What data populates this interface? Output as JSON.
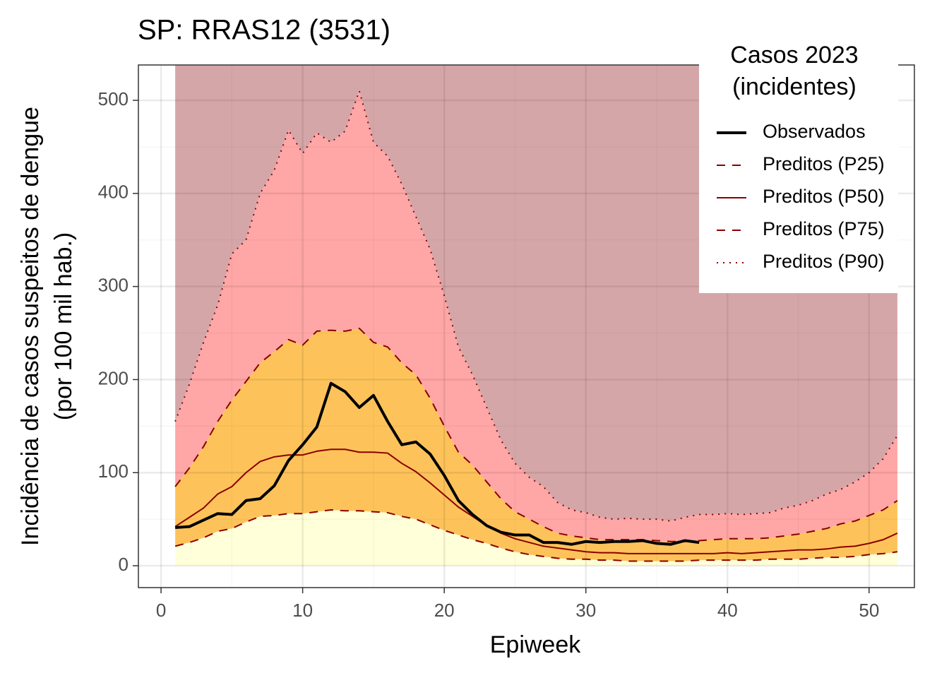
{
  "chart_data": {
    "type": "line",
    "title": "SP: RRAS12 (3531)",
    "xlabel": "Epiweek",
    "ylabel": [
      "Incidência de casos suspeitos de dengue",
      "(por 100 mil hab.)"
    ],
    "legend_title": [
      "Casos 2023",
      "(incidentes)"
    ],
    "legend_position": "top-right",
    "grid": true,
    "xlim": [
      -1.6,
      53.2
    ],
    "ylim": [
      -23.5,
      538
    ],
    "xticks": [
      0,
      10,
      20,
      30,
      40,
      50
    ],
    "yticks": [
      0,
      100,
      200,
      300,
      400,
      500
    ],
    "xminor": [
      5,
      15,
      25,
      35,
      45
    ],
    "yminor": [
      50,
      150,
      250,
      350,
      450
    ],
    "above_fill": "#d5a6a8",
    "x": [
      1,
      2,
      3,
      4,
      5,
      6,
      7,
      8,
      9,
      10,
      11,
      12,
      13,
      14,
      15,
      16,
      17,
      18,
      19,
      20,
      21,
      22,
      23,
      24,
      25,
      26,
      27,
      28,
      29,
      30,
      31,
      32,
      33,
      34,
      35,
      36,
      37,
      38,
      39,
      40,
      41,
      42,
      43,
      44,
      45,
      46,
      47,
      48,
      49,
      50,
      51,
      52
    ],
    "series": [
      {
        "name": "Observados",
        "color": "#000000",
        "dash": "solid",
        "width": 4,
        "values": [
          41,
          42,
          49,
          56,
          55,
          70,
          72,
          86,
          113,
          130,
          149,
          196,
          187,
          170,
          183,
          155,
          130,
          133,
          120,
          97,
          70,
          55,
          43,
          36,
          33,
          33,
          25,
          25,
          23,
          26,
          25,
          26,
          26,
          27,
          24,
          23,
          27,
          25,
          null,
          null,
          null,
          null,
          null,
          null,
          null,
          null,
          null,
          null,
          null,
          null,
          null,
          null
        ]
      },
      {
        "name": "Preditos (P25)",
        "color": "#8b0000",
        "dash": "dashed",
        "width": 2,
        "fill": "#ffffd9",
        "values": [
          21,
          25,
          30,
          37,
          40,
          47,
          53,
          54,
          56,
          56,
          58,
          60,
          59,
          59,
          58,
          57,
          53,
          50,
          44,
          38,
          33,
          28,
          24,
          19,
          15,
          12,
          10,
          8,
          7,
          7,
          6,
          6,
          5,
          5,
          5,
          5,
          5,
          6,
          6,
          6,
          6,
          6,
          7,
          7,
          7,
          8,
          9,
          9,
          10,
          12,
          13,
          15
        ]
      },
      {
        "name": "Preditos (P50)",
        "color": "#8b0000",
        "dash": "solid",
        "width": 2,
        "values": [
          42,
          52,
          62,
          77,
          85,
          100,
          112,
          117,
          119,
          119,
          123,
          125,
          125,
          122,
          122,
          121,
          110,
          101,
          89,
          76,
          63,
          53,
          43,
          35,
          29,
          25,
          21,
          19,
          17,
          15,
          14,
          14,
          13,
          13,
          13,
          13,
          13,
          13,
          13,
          14,
          13,
          14,
          15,
          16,
          17,
          17,
          18,
          20,
          21,
          24,
          28,
          35
        ]
      },
      {
        "name": "Preditos (P75)",
        "color": "#8b0000",
        "dash": "dashed",
        "width": 2,
        "fill": "#fdc35a",
        "values": [
          85,
          105,
          128,
          155,
          178,
          198,
          218,
          230,
          243,
          237,
          252,
          253,
          252,
          255,
          240,
          235,
          218,
          205,
          180,
          150,
          122,
          108,
          90,
          72,
          58,
          50,
          42,
          35,
          32,
          30,
          28,
          28,
          28,
          28,
          27,
          26,
          26,
          27,
          28,
          29,
          29,
          29,
          30,
          32,
          34,
          37,
          40,
          45,
          48,
          54,
          60,
          70
        ]
      },
      {
        "name": "Preditos (P90)",
        "color": "#8b0000",
        "dash": "dotted",
        "width": 2,
        "fill": "#ffa6a6",
        "values": [
          155,
          195,
          240,
          280,
          335,
          350,
          400,
          425,
          468,
          443,
          465,
          455,
          467,
          510,
          455,
          440,
          410,
          375,
          340,
          290,
          235,
          205,
          170,
          135,
          110,
          95,
          85,
          68,
          60,
          57,
          52,
          50,
          51,
          50,
          50,
          48,
          52,
          55,
          55,
          56,
          55,
          56,
          57,
          62,
          65,
          70,
          77,
          82,
          90,
          100,
          115,
          140
        ]
      }
    ]
  }
}
